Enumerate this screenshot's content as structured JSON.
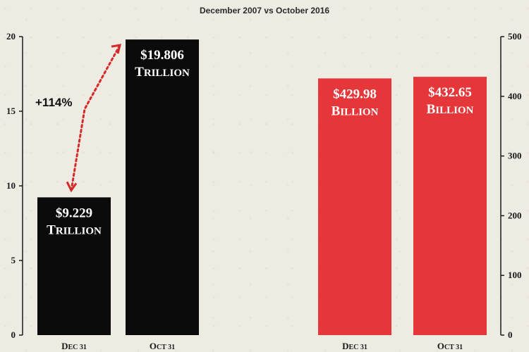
{
  "header": {
    "title": "",
    "subtitle": "December 2007 vs October 2016"
  },
  "chart_data": [
    {
      "type": "bar",
      "categories": [
        "Dec 31",
        "Oct 31"
      ],
      "values": [
        9.229,
        19.806
      ],
      "data_labels": [
        [
          "$9.229",
          "Trillion"
        ],
        [
          "$19.806",
          "Trillion"
        ]
      ],
      "ylim": [
        0,
        20
      ],
      "yticks": [
        0,
        5,
        10,
        15,
        20
      ],
      "axis_side": "left",
      "bar_color": "#0b0b0b",
      "label_color": "#ffffff",
      "annotation": {
        "text": "+114%",
        "color": "#d42a2a"
      },
      "grid": false
    },
    {
      "type": "bar",
      "categories": [
        "Dec 31",
        "Oct 31"
      ],
      "values": [
        429.98,
        432.65
      ],
      "data_labels": [
        [
          "$429.98",
          "Billion"
        ],
        [
          "$432.65",
          "Billion"
        ]
      ],
      "ylim": [
        0,
        500
      ],
      "yticks": [
        0,
        100,
        200,
        300,
        400,
        500
      ],
      "axis_side": "right",
      "bar_color": "#e5373a",
      "label_color": "#ffffff",
      "grid": false
    }
  ]
}
